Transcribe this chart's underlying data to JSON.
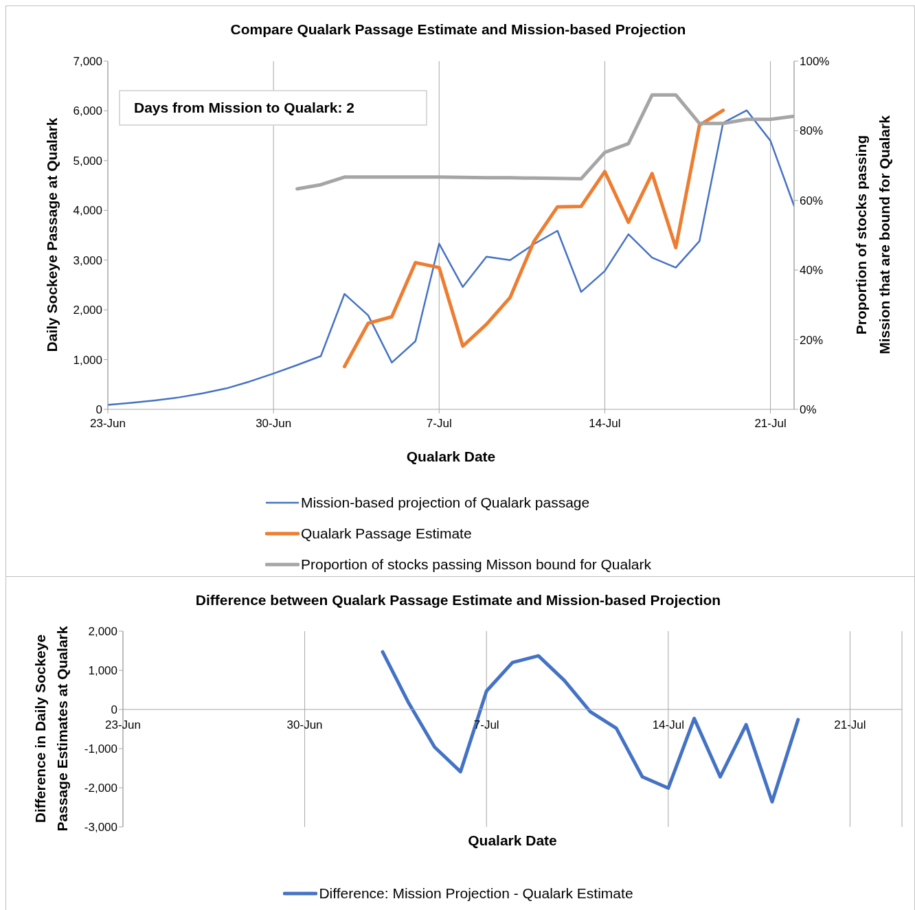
{
  "chart_data": [
    {
      "type": "line",
      "title": "Compare Qualark Passage Estimate and Mission-based Projection",
      "xlabel": "Qualark Date",
      "ylabel": "Daily Sockeye Passage at Qualark",
      "y2label": "Proportion of stocks passing Mission that are bound for Qualark",
      "annotations": [
        "Days from Mission to Qualark: 2"
      ],
      "x": [
        "--06-23",
        "--06-24",
        "--06-25",
        "--06-26",
        "--06-27",
        "--06-28",
        "--06-29",
        "--06-30",
        "--07-01",
        "--07-02",
        "--07-03",
        "--07-04",
        "--07-05",
        "--07-06",
        "--07-07",
        "--07-08",
        "--07-09",
        "--07-10",
        "--07-11",
        "--07-12",
        "--07-13",
        "--07-14",
        "--07-15",
        "--07-16",
        "--07-17",
        "--07-18",
        "--07-19",
        "--07-20",
        "--07-21",
        "--07-22"
      ],
      "series": [
        {
          "name": "Mission-based projection of Qualark passage",
          "color": "#4472c4",
          "values": [
            90,
            130,
            180,
            240,
            320,
            420,
            560,
            720,
            890,
            1070,
            2320,
            1890,
            940,
            1370,
            3330,
            2460,
            3070,
            3000,
            3320,
            3590,
            2360,
            2780,
            3520,
            3050,
            2850,
            3380,
            5760,
            6010,
            5400,
            4090
          ]
        },
        {
          "name": "Qualark Passage Estimate",
          "color": "#ed7d31",
          "values": [
            null,
            null,
            null,
            null,
            null,
            null,
            null,
            null,
            null,
            null,
            860,
            1730,
            1860,
            2950,
            2850,
            1270,
            1710,
            2250,
            3370,
            4070,
            4080,
            4780,
            3760,
            4740,
            3250,
            5710,
            6010,
            null,
            null,
            null
          ]
        },
        {
          "name": "Proportion of stocks passing Misson bound for Qualark",
          "color": "#a5a5a5",
          "axis": "y2",
          "values": [
            null,
            null,
            null,
            null,
            null,
            null,
            null,
            null,
            63.3,
            64.5,
            66.7,
            66.7,
            66.7,
            66.7,
            66.7,
            66.6,
            66.5,
            66.5,
            66.4,
            66.3,
            66.2,
            73.8,
            76.3,
            90.3,
            90.3,
            82.1,
            82.1,
            83.3,
            83.3,
            84.2
          ]
        }
      ],
      "xlim": [
        "--06-23",
        "--07-22"
      ],
      "xticks": [
        {
          "value": "--06-23",
          "label": "23-Jun"
        },
        {
          "value": "--06-30",
          "label": "30-Jun"
        },
        {
          "value": "--07-07",
          "label": "7-Jul"
        },
        {
          "value": "--07-14",
          "label": "14-Jul"
        },
        {
          "value": "--07-21",
          "label": "21-Jul"
        }
      ],
      "ylim": [
        0,
        7000
      ],
      "yticks": [
        0,
        {
          "value": 1000,
          "label": "1,000"
        },
        {
          "value": 2000,
          "label": "2,000"
        },
        {
          "value": 3000,
          "label": "3,000"
        },
        {
          "value": 4000,
          "label": "4,000"
        },
        {
          "value": 5000,
          "label": "5,000"
        },
        {
          "value": 6000,
          "label": "6,000"
        },
        {
          "value": 7000,
          "label": "7,000"
        }
      ],
      "y2lim": [
        0,
        100
      ],
      "y2ticks": [
        {
          "value": 0,
          "label": "0%"
        },
        {
          "value": 20,
          "label": "20%"
        },
        {
          "value": 40,
          "label": "40%"
        },
        {
          "value": 60,
          "label": "60%"
        },
        {
          "value": 80,
          "label": "80%"
        },
        {
          "value": 100,
          "label": "100%"
        }
      ],
      "grid": "x",
      "legend": "bottom",
      "marker": "none"
    },
    {
      "type": "line",
      "title": "Difference between Qualark Passage Estimate and Mission-based Projection",
      "xlabel": "Qualark Date",
      "ylabel": "Difference in Daily Sockeye Passage Estimates at Qualark",
      "x": [
        "--07-03",
        "--07-04",
        "--07-05",
        "--07-06",
        "--07-07",
        "--07-08",
        "--07-09",
        "--07-10",
        "--07-11",
        "--07-12",
        "--07-13",
        "--07-14",
        "--07-15",
        "--07-16",
        "--07-17",
        "--07-18",
        "--07-19"
      ],
      "series": [
        {
          "name": "Difference: Mission Projection - Qualark Estimate",
          "color": "#4472c4",
          "values": [
            1470,
            170,
            -960,
            -1590,
            470,
            1200,
            1370,
            740,
            -60,
            -480,
            -1720,
            -2010,
            -230,
            -1720,
            -390,
            -2360,
            -260
          ]
        }
      ],
      "xlim": [
        "--06-23",
        "--07-23"
      ],
      "xticks": [
        {
          "value": "--06-23",
          "label": "23-Jun"
        },
        {
          "value": "--06-30",
          "label": "30-Jun"
        },
        {
          "value": "--07-07",
          "label": "7-Jul"
        },
        {
          "value": "--07-14",
          "label": "14-Jul"
        },
        {
          "value": "--07-21",
          "label": "21-Jul"
        }
      ],
      "ylim": [
        -3000,
        2000
      ],
      "yticks": [
        {
          "value": -3000,
          "label": "-3,000"
        },
        {
          "value": -2000,
          "label": "-2,000"
        },
        {
          "value": -1000,
          "label": "-1,000"
        },
        0,
        {
          "value": 1000,
          "label": "1,000"
        },
        {
          "value": 2000,
          "label": "2,000"
        }
      ],
      "grid": "x",
      "legend": "bottom",
      "marker": "none"
    }
  ]
}
